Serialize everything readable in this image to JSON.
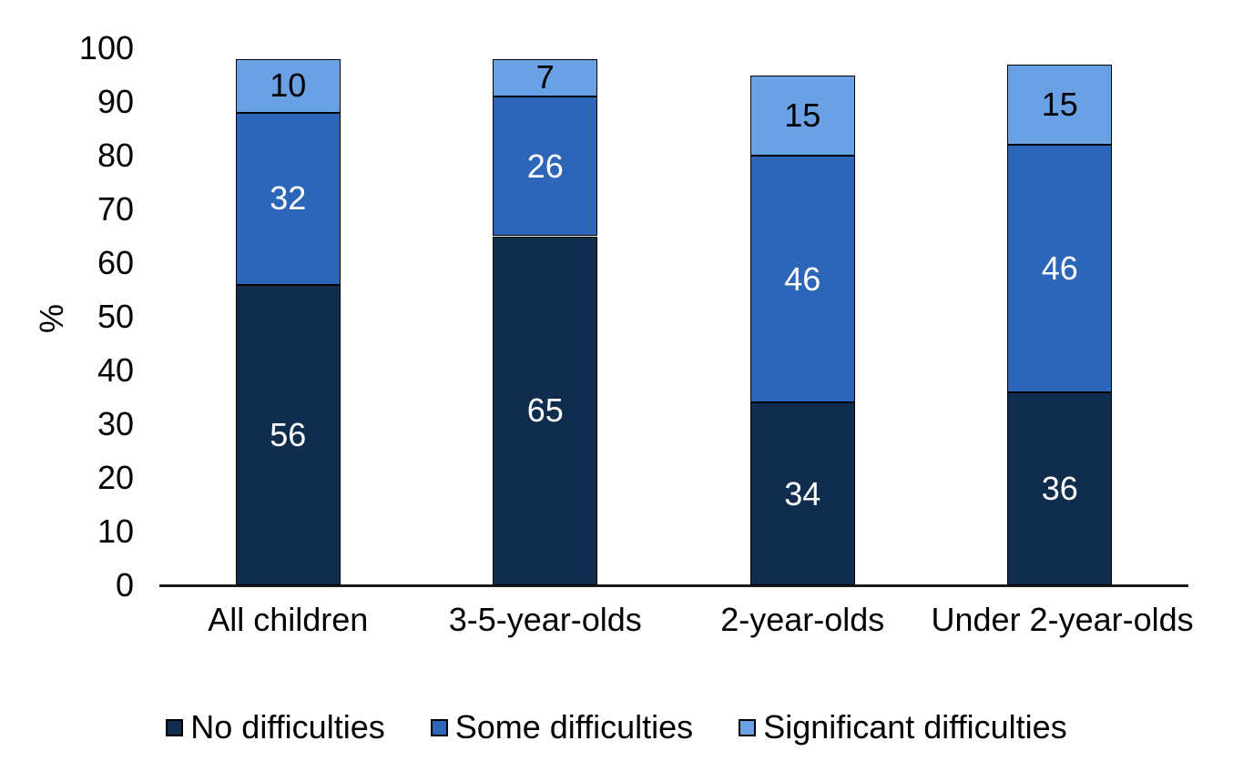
{
  "chart_data": {
    "type": "bar",
    "stacked": true,
    "title": "",
    "ylabel": "%",
    "ylim": [
      0,
      100
    ],
    "yticks": [
      0,
      10,
      20,
      30,
      40,
      50,
      60,
      70,
      80,
      90,
      100
    ],
    "grid": false,
    "legend_position": "bottom",
    "categories": [
      "All children",
      "3-5-year-olds",
      "2-year-olds",
      "Under 2-year-olds"
    ],
    "series": [
      {
        "name": "No difficulties",
        "color": "#112D4E",
        "label_color": "#FFFFFF",
        "values": [
          56,
          65,
          34,
          36
        ]
      },
      {
        "name": "Some difficulties",
        "color": "#2D65B8",
        "label_color": "#FFFFFF",
        "values": [
          32,
          26,
          46,
          46
        ]
      },
      {
        "name": "Significant difficulties",
        "color": "#6AA0E4",
        "label_color": "#000000",
        "values": [
          10,
          7,
          15,
          15
        ]
      }
    ],
    "totals": [
      98,
      98,
      95,
      97
    ],
    "bar_outline_color": "#000000",
    "axis_line_color": "#1A1A1A",
    "text_color": "#000000",
    "background_color": "#FFFFFF"
  }
}
